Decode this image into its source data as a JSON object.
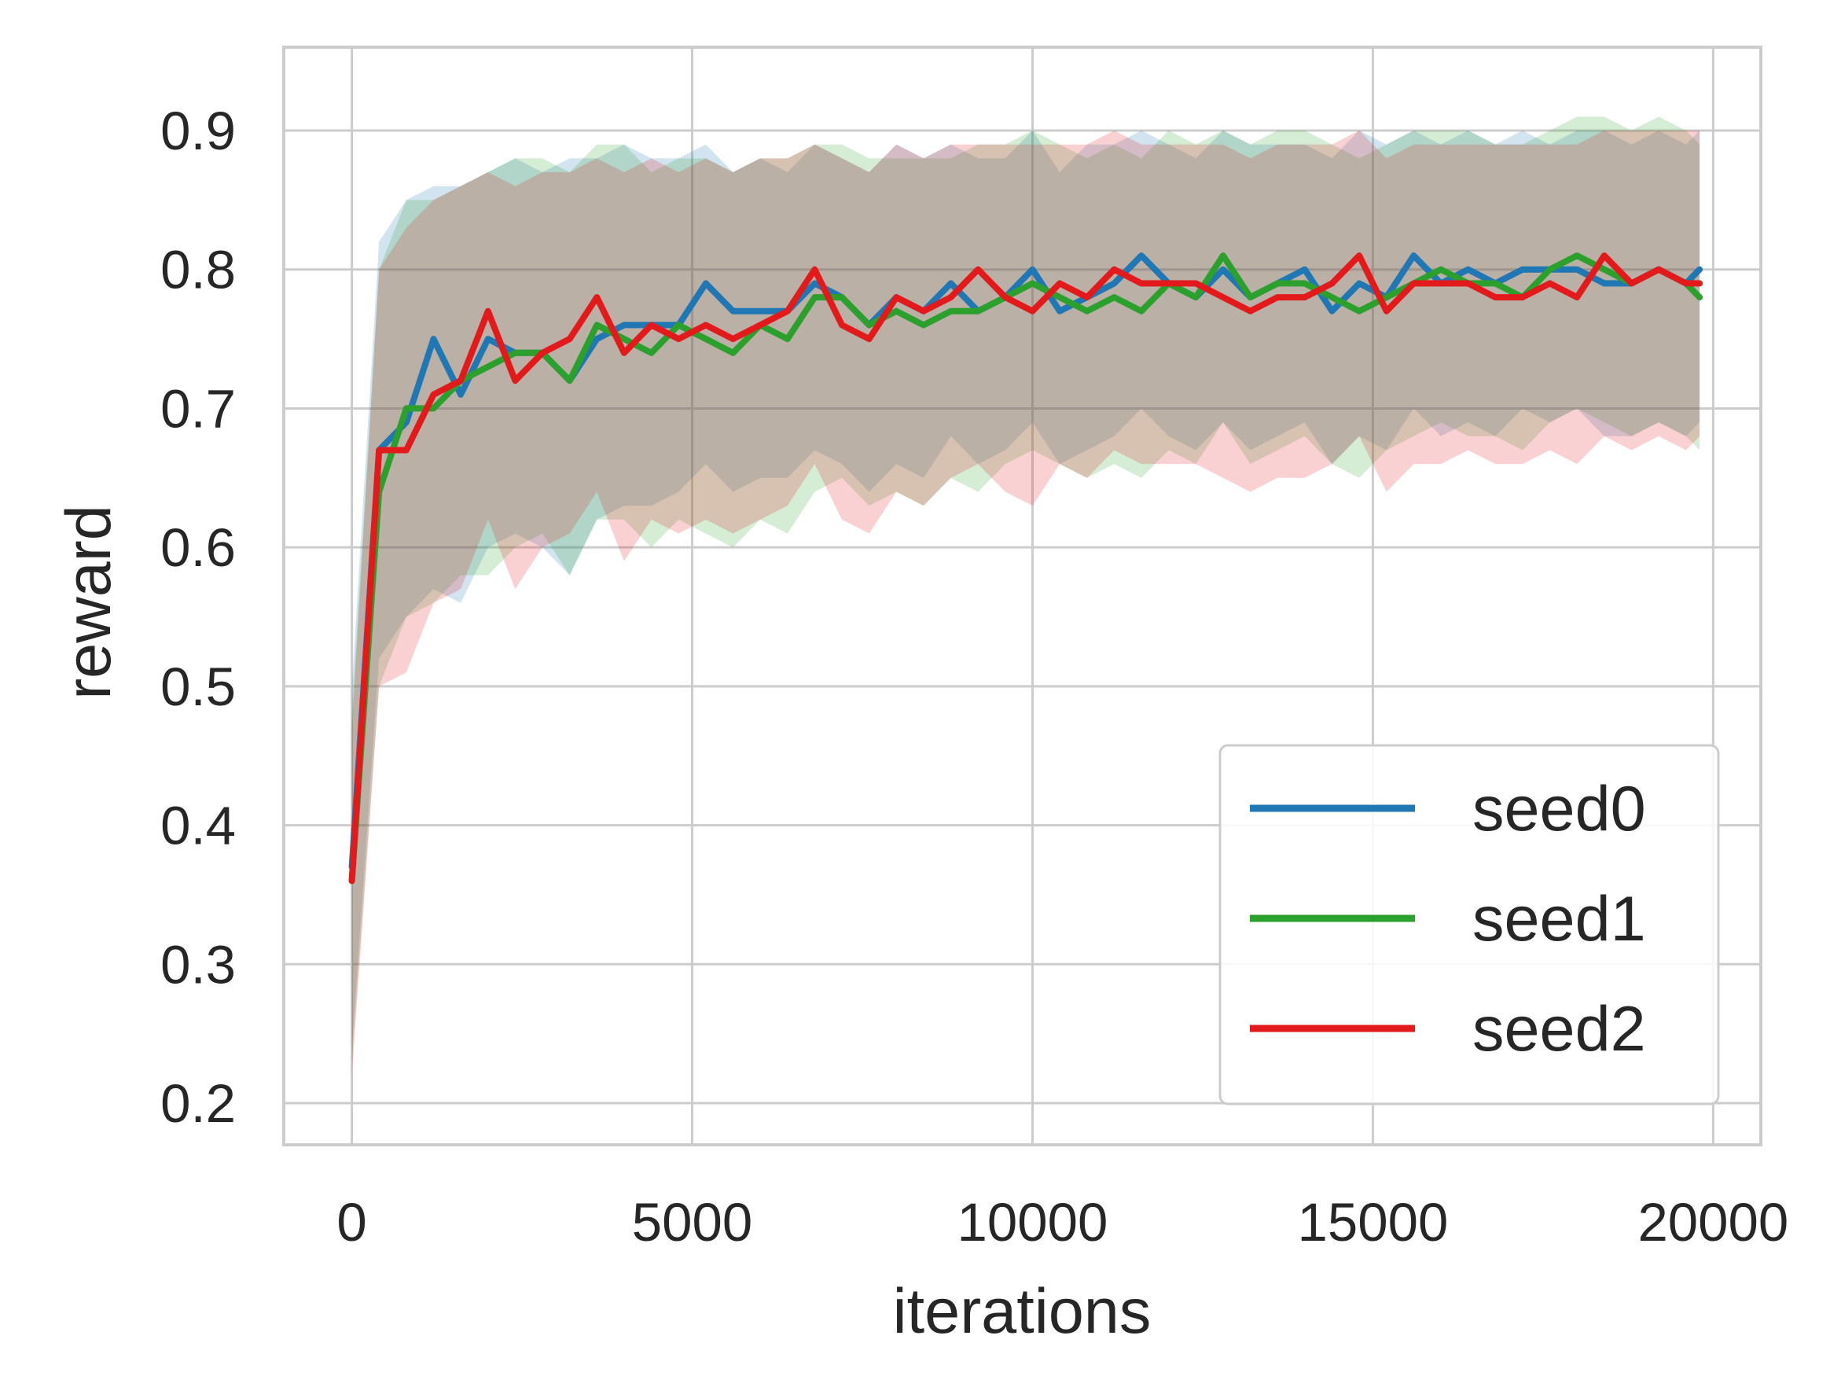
{
  "chart_data": {
    "type": "line",
    "xlabel": "iterations",
    "ylabel": "reward",
    "xlim": [
      -1000,
      20700
    ],
    "ylim": [
      0.17,
      0.96
    ],
    "xticks": [
      0,
      5000,
      10000,
      15000,
      20000
    ],
    "xtick_labels": [
      "0",
      "5000",
      "10000",
      "15000",
      "20000"
    ],
    "yticks": [
      0.2,
      0.3,
      0.4,
      0.5,
      0.6,
      0.7,
      0.8,
      0.9
    ],
    "ytick_labels": [
      "0.2",
      "0.3",
      "0.4",
      "0.5",
      "0.6",
      "0.7",
      "0.8",
      "0.9"
    ],
    "grid": true,
    "legend_position": "bottom-right",
    "shaded_band": "per-series min/max band around mean",
    "x": [
      0,
      400,
      800,
      1200,
      1600,
      2000,
      2400,
      2800,
      3200,
      3600,
      4000,
      4400,
      4800,
      5200,
      5600,
      6000,
      6400,
      6800,
      7200,
      7600,
      8000,
      8400,
      8800,
      9200,
      9600,
      10000,
      10400,
      10800,
      11200,
      11600,
      12000,
      12400,
      12800,
      13200,
      13600,
      14000,
      14400,
      14800,
      15200,
      15600,
      16000,
      16400,
      16800,
      17200,
      17600,
      18000,
      18400,
      18800,
      19200,
      19600,
      19800
    ],
    "series": [
      {
        "name": "seed0",
        "color": "#1f77b4",
        "values": [
          0.37,
          0.67,
          0.69,
          0.75,
          0.71,
          0.75,
          0.74,
          0.74,
          0.72,
          0.75,
          0.76,
          0.76,
          0.76,
          0.79,
          0.77,
          0.77,
          0.77,
          0.79,
          0.78,
          0.76,
          0.78,
          0.77,
          0.79,
          0.77,
          0.78,
          0.8,
          0.77,
          0.78,
          0.79,
          0.81,
          0.79,
          0.78,
          0.8,
          0.78,
          0.79,
          0.8,
          0.77,
          0.79,
          0.78,
          0.81,
          0.79,
          0.8,
          0.79,
          0.8,
          0.8,
          0.8,
          0.79,
          0.79,
          0.8,
          0.79,
          0.8
        ],
        "upper": [
          0.5,
          0.82,
          0.85,
          0.86,
          0.86,
          0.87,
          0.88,
          0.87,
          0.88,
          0.88,
          0.89,
          0.88,
          0.88,
          0.89,
          0.87,
          0.88,
          0.87,
          0.89,
          0.88,
          0.87,
          0.89,
          0.88,
          0.89,
          0.88,
          0.88,
          0.9,
          0.87,
          0.89,
          0.89,
          0.9,
          0.89,
          0.88,
          0.9,
          0.89,
          0.89,
          0.89,
          0.88,
          0.9,
          0.89,
          0.9,
          0.89,
          0.9,
          0.89,
          0.9,
          0.89,
          0.9,
          0.9,
          0.89,
          0.9,
          0.89,
          0.9
        ],
        "lower": [
          0.24,
          0.52,
          0.55,
          0.57,
          0.56,
          0.6,
          0.61,
          0.6,
          0.58,
          0.62,
          0.63,
          0.63,
          0.64,
          0.66,
          0.64,
          0.65,
          0.65,
          0.67,
          0.66,
          0.64,
          0.66,
          0.65,
          0.68,
          0.66,
          0.67,
          0.69,
          0.66,
          0.67,
          0.68,
          0.7,
          0.68,
          0.67,
          0.69,
          0.67,
          0.68,
          0.69,
          0.66,
          0.68,
          0.67,
          0.7,
          0.68,
          0.69,
          0.68,
          0.7,
          0.69,
          0.7,
          0.68,
          0.68,
          0.69,
          0.68,
          0.69
        ]
      },
      {
        "name": "seed1",
        "color": "#2ca02c",
        "values": [
          0.36,
          0.64,
          0.7,
          0.7,
          0.72,
          0.73,
          0.74,
          0.74,
          0.72,
          0.76,
          0.75,
          0.74,
          0.76,
          0.75,
          0.74,
          0.76,
          0.75,
          0.78,
          0.78,
          0.76,
          0.77,
          0.76,
          0.77,
          0.77,
          0.78,
          0.79,
          0.78,
          0.77,
          0.78,
          0.77,
          0.79,
          0.78,
          0.81,
          0.78,
          0.79,
          0.79,
          0.78,
          0.77,
          0.78,
          0.79,
          0.8,
          0.79,
          0.79,
          0.78,
          0.8,
          0.81,
          0.8,
          0.79,
          0.8,
          0.79,
          0.78
        ],
        "upper": [
          0.48,
          0.8,
          0.85,
          0.85,
          0.86,
          0.87,
          0.88,
          0.88,
          0.87,
          0.89,
          0.89,
          0.87,
          0.88,
          0.88,
          0.87,
          0.88,
          0.88,
          0.89,
          0.89,
          0.88,
          0.88,
          0.88,
          0.88,
          0.89,
          0.89,
          0.9,
          0.89,
          0.88,
          0.89,
          0.88,
          0.9,
          0.89,
          0.9,
          0.89,
          0.9,
          0.9,
          0.89,
          0.88,
          0.89,
          0.9,
          0.9,
          0.9,
          0.89,
          0.89,
          0.9,
          0.91,
          0.91,
          0.9,
          0.91,
          0.9,
          0.89
        ],
        "lower": [
          0.23,
          0.5,
          0.55,
          0.56,
          0.58,
          0.58,
          0.6,
          0.61,
          0.58,
          0.62,
          0.62,
          0.6,
          0.62,
          0.61,
          0.6,
          0.62,
          0.61,
          0.64,
          0.65,
          0.63,
          0.64,
          0.63,
          0.65,
          0.64,
          0.66,
          0.67,
          0.66,
          0.65,
          0.66,
          0.65,
          0.67,
          0.66,
          0.69,
          0.66,
          0.67,
          0.68,
          0.66,
          0.65,
          0.67,
          0.68,
          0.69,
          0.68,
          0.68,
          0.67,
          0.69,
          0.7,
          0.69,
          0.68,
          0.69,
          0.68,
          0.67
        ]
      },
      {
        "name": "seed2",
        "color": "#e31a1c",
        "values": [
          0.36,
          0.67,
          0.67,
          0.71,
          0.72,
          0.77,
          0.72,
          0.74,
          0.75,
          0.78,
          0.74,
          0.76,
          0.75,
          0.76,
          0.75,
          0.76,
          0.77,
          0.8,
          0.76,
          0.75,
          0.78,
          0.77,
          0.78,
          0.8,
          0.78,
          0.77,
          0.79,
          0.78,
          0.8,
          0.79,
          0.79,
          0.79,
          0.78,
          0.77,
          0.78,
          0.78,
          0.79,
          0.81,
          0.77,
          0.79,
          0.79,
          0.79,
          0.78,
          0.78,
          0.79,
          0.78,
          0.81,
          0.79,
          0.8,
          0.79,
          0.79
        ],
        "upper": [
          0.47,
          0.8,
          0.83,
          0.85,
          0.86,
          0.87,
          0.86,
          0.87,
          0.87,
          0.88,
          0.87,
          0.88,
          0.87,
          0.88,
          0.87,
          0.88,
          0.88,
          0.89,
          0.88,
          0.87,
          0.89,
          0.88,
          0.89,
          0.89,
          0.89,
          0.89,
          0.89,
          0.89,
          0.9,
          0.89,
          0.89,
          0.89,
          0.89,
          0.88,
          0.89,
          0.89,
          0.89,
          0.9,
          0.88,
          0.89,
          0.89,
          0.89,
          0.89,
          0.89,
          0.89,
          0.89,
          0.9,
          0.9,
          0.9,
          0.9,
          0.9
        ],
        "lower": [
          0.22,
          0.5,
          0.51,
          0.56,
          0.57,
          0.62,
          0.57,
          0.6,
          0.61,
          0.64,
          0.59,
          0.62,
          0.61,
          0.62,
          0.61,
          0.62,
          0.63,
          0.66,
          0.62,
          0.61,
          0.64,
          0.63,
          0.65,
          0.66,
          0.64,
          0.63,
          0.66,
          0.65,
          0.67,
          0.66,
          0.66,
          0.66,
          0.65,
          0.64,
          0.65,
          0.65,
          0.66,
          0.68,
          0.64,
          0.66,
          0.66,
          0.67,
          0.66,
          0.66,
          0.67,
          0.66,
          0.68,
          0.67,
          0.68,
          0.67,
          0.68
        ]
      }
    ]
  }
}
